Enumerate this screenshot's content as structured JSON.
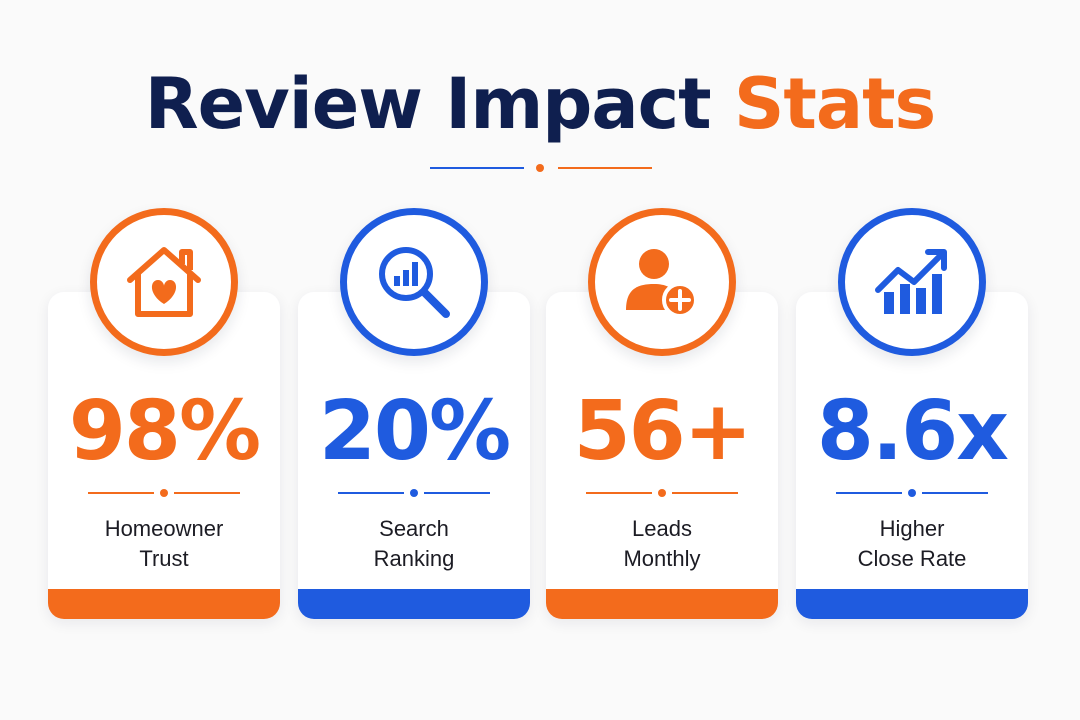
{
  "header": {
    "title_part1": "Review Impact",
    "title_part2": "Stats"
  },
  "colors": {
    "orange": "#f36b1c",
    "blue": "#1f5bdf",
    "navy": "#0f1f4f"
  },
  "cards": [
    {
      "value": "98%",
      "label_line1": "Homeowner",
      "label_line2": "Trust",
      "accent": "orange",
      "icon": "house-heart-icon"
    },
    {
      "value": "20%",
      "label_line1": "Search",
      "label_line2": "Ranking",
      "accent": "blue",
      "icon": "magnifier-chart-icon"
    },
    {
      "value": "56+",
      "label_line1": "Leads",
      "label_line2": "Monthly",
      "accent": "orange",
      "icon": "user-add-icon"
    },
    {
      "value": "8.6x",
      "label_line1": "Higher",
      "label_line2": "Close Rate",
      "accent": "blue",
      "icon": "trend-chart-icon"
    }
  ]
}
